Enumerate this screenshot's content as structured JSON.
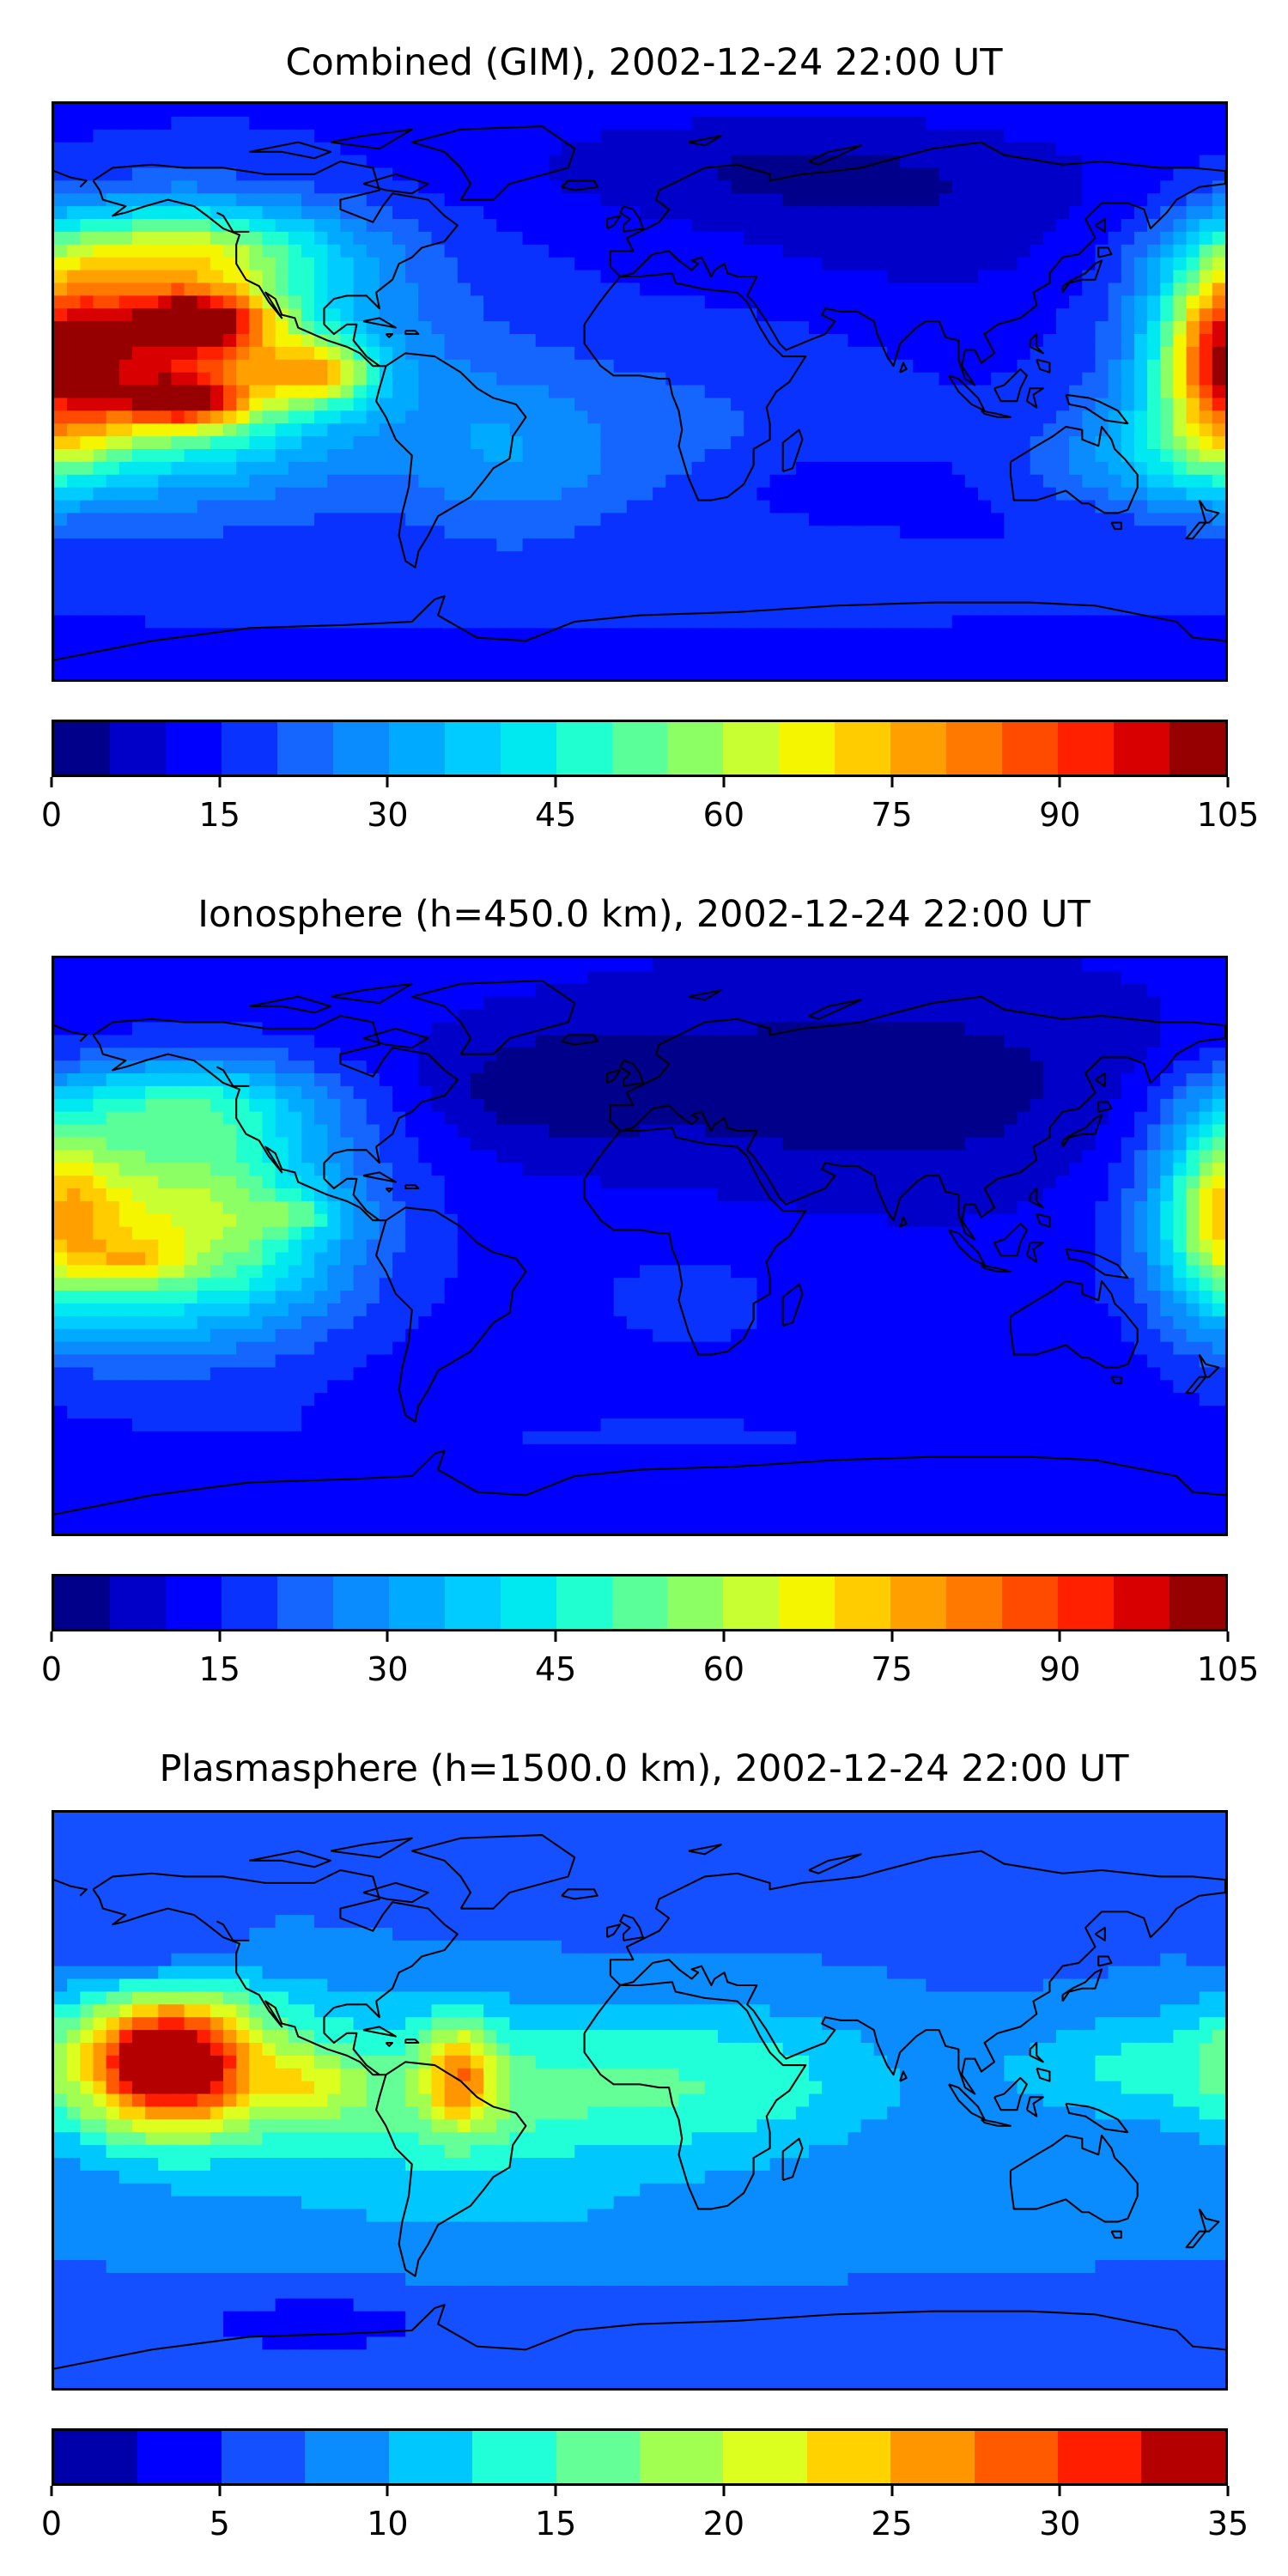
{
  "panels": [
    {
      "title": "Combined (GIM), 2002-12-24 22:00 UT",
      "colorbar": {
        "ticks": [
          "0",
          "15",
          "30",
          "45",
          "60",
          "75",
          "90",
          "105"
        ],
        "min": 0,
        "max": 105,
        "colors": [
          "#00008b",
          "#0000c8",
          "#0000ff",
          "#0a32ff",
          "#1466ff",
          "#0a8cff",
          "#00aaff",
          "#00ccff",
          "#00e8f0",
          "#20ffd0",
          "#5aff9a",
          "#8cff64",
          "#c8ff32",
          "#f5f500",
          "#ffcc00",
          "#ffa000",
          "#ff7800",
          "#ff4b00",
          "#ff2000",
          "#d80000",
          "#960000"
        ]
      },
      "field": {
        "base": 14,
        "blobs": [
          {
            "lon": -150,
            "lat": 12,
            "sx": 30,
            "sy": 22,
            "v": 58
          },
          {
            "lon": -135,
            "lat": 22,
            "sx": 14,
            "sy": 6,
            "v": 40
          },
          {
            "lon": -140,
            "lat": -3,
            "sx": 13,
            "sy": 5,
            "v": 38
          },
          {
            "lon": -98,
            "lat": 6,
            "sx": 12,
            "sy": 7,
            "v": 34
          },
          {
            "lon": -140,
            "lat": 45,
            "sx": 35,
            "sy": 10,
            "v": 26
          },
          {
            "lon": -120,
            "lat": 10,
            "sx": 45,
            "sy": 30,
            "v": 20
          },
          {
            "lon": -40,
            "lat": -20,
            "sx": 25,
            "sy": 18,
            "v": 12
          },
          {
            "lon": 180,
            "lat": 10,
            "sx": 14,
            "sy": 22,
            "v": 48
          },
          {
            "lon": 160,
            "lat": -20,
            "sx": 25,
            "sy": 12,
            "v": 18
          },
          {
            "lon": 40,
            "lat": 70,
            "sx": 60,
            "sy": 12,
            "v": -8
          },
          {
            "lon": 90,
            "lat": 50,
            "sx": 50,
            "sy": 18,
            "v": -6
          },
          {
            "lon": 20,
            "lat": -10,
            "sx": 40,
            "sy": 25,
            "v": 6
          },
          {
            "lon": 60,
            "lat": -30,
            "sx": 20,
            "sy": 6,
            "v": -6
          },
          {
            "lon": 0,
            "lat": -60,
            "sx": 120,
            "sy": 8,
            "v": 4
          }
        ]
      }
    },
    {
      "title": "Ionosphere  (h=450.0 km), 2002-12-24 22:00 UT",
      "colorbar": {
        "ticks": [
          "0",
          "15",
          "30",
          "45",
          "60",
          "75",
          "90",
          "105"
        ],
        "min": 0,
        "max": 105,
        "colors": [
          "#00008b",
          "#0000c8",
          "#0000ff",
          "#0a32ff",
          "#1466ff",
          "#0a8cff",
          "#00aaff",
          "#00ccff",
          "#00e8f0",
          "#20ffd0",
          "#5aff9a",
          "#8cff64",
          "#c8ff32",
          "#f5f500",
          "#ffcc00",
          "#ffa000",
          "#ff7800",
          "#ff4b00",
          "#ff2000",
          "#d80000",
          "#960000"
        ]
      },
      "field": {
        "base": 12,
        "blobs": [
          {
            "lon": -140,
            "lat": 8,
            "sx": 35,
            "sy": 25,
            "v": 52
          },
          {
            "lon": -155,
            "lat": -5,
            "sx": 10,
            "sy": 5,
            "v": 16
          },
          {
            "lon": -105,
            "lat": 10,
            "sx": 9,
            "sy": 4,
            "v": 12
          },
          {
            "lon": -140,
            "lat": 45,
            "sx": 30,
            "sy": 10,
            "v": 22
          },
          {
            "lon": 180,
            "lat": 10,
            "sx": 14,
            "sy": 22,
            "v": 38
          },
          {
            "lon": 70,
            "lat": 50,
            "sx": 70,
            "sy": 25,
            "v": -10
          },
          {
            "lon": -30,
            "lat": 50,
            "sx": 25,
            "sy": 12,
            "v": -8
          },
          {
            "lon": 15,
            "lat": -15,
            "sx": 35,
            "sy": 20,
            "v": 4
          },
          {
            "lon": 0,
            "lat": -60,
            "sx": 120,
            "sy": 8,
            "v": 3
          }
        ]
      }
    },
    {
      "title": "Plasmasphere (h=1500.0 km), 2002-12-24 22:00 UT",
      "colorbar": {
        "ticks": [
          "0",
          "5",
          "10",
          "15",
          "20",
          "25",
          "30",
          "35"
        ],
        "min": 0,
        "max": 35,
        "colors": [
          "#0000aa",
          "#0000ff",
          "#1450ff",
          "#0a8cff",
          "#00c8ff",
          "#20ffd8",
          "#64ff96",
          "#a0ff50",
          "#dcff20",
          "#ffd200",
          "#ff9600",
          "#ff5a00",
          "#ff1e00",
          "#b40000"
        ]
      },
      "field": {
        "base": 7,
        "blobs": [
          {
            "lon": -145,
            "lat": 12,
            "sx": 18,
            "sy": 14,
            "v": 24
          },
          {
            "lon": -140,
            "lat": 10,
            "sx": 35,
            "sy": 22,
            "v": 8
          },
          {
            "lon": -55,
            "lat": 8,
            "sx": 8,
            "sy": 12,
            "v": 12
          },
          {
            "lon": -100,
            "lat": 5,
            "sx": 10,
            "sy": 7,
            "v": 6
          },
          {
            "lon": -60,
            "lat": 0,
            "sx": 40,
            "sy": 20,
            "v": 8
          },
          {
            "lon": 25,
            "lat": 5,
            "sx": 40,
            "sy": 18,
            "v": 7
          },
          {
            "lon": 150,
            "lat": 10,
            "sx": 30,
            "sy": 12,
            "v": 5
          },
          {
            "lon": -150,
            "lat": 45,
            "sx": 20,
            "sy": 8,
            "v": -4
          },
          {
            "lon": -100,
            "lat": -70,
            "sx": 25,
            "sy": 6,
            "v": -4
          },
          {
            "lon": 0,
            "lat": -40,
            "sx": 120,
            "sy": 10,
            "v": 2
          }
        ]
      }
    }
  ]
}
